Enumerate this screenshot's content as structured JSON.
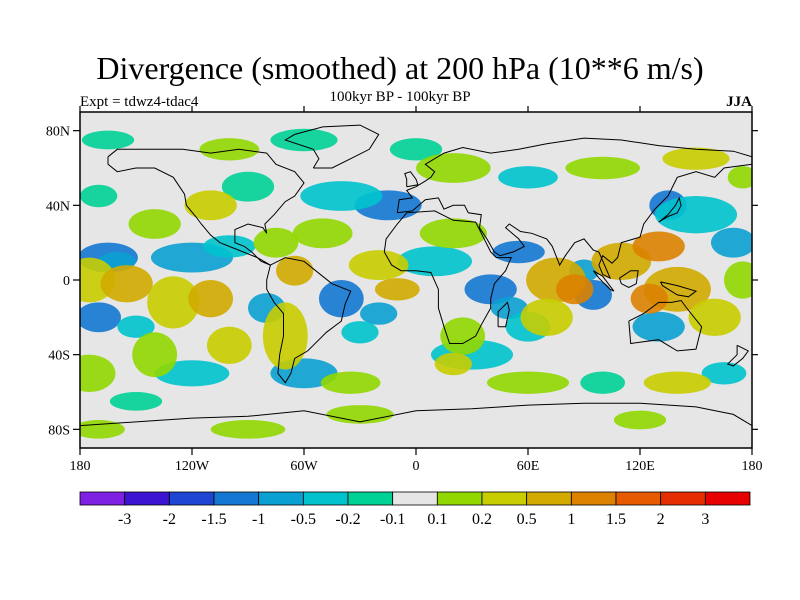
{
  "title": "Divergence (smoothed) at 200 hPa (10**6 m/s)",
  "subtitle": "100kyr BP - 100kyr BP",
  "experiment_label": "Expt = tdwz4-tdac4",
  "season_label": "JJA",
  "colors": {
    "land_bg": "#e6e6e6",
    "coast": "#000000"
  },
  "axes": {
    "x_ticks": [
      {
        "value": -180,
        "label": "180"
      },
      {
        "value": -120,
        "label": "120W"
      },
      {
        "value": -60,
        "label": "60W"
      },
      {
        "value": 0,
        "label": "0"
      },
      {
        "value": 60,
        "label": "60E"
      },
      {
        "value": 120,
        "label": "120E"
      },
      {
        "value": 180,
        "label": "180"
      }
    ],
    "y_ticks": [
      {
        "value": 80,
        "label": "80N"
      },
      {
        "value": 40,
        "label": "40N"
      },
      {
        "value": 0,
        "label": "0"
      },
      {
        "value": -40,
        "label": "40S"
      },
      {
        "value": -80,
        "label": "80S"
      }
    ],
    "x_range": [
      -180,
      180
    ],
    "y_range": [
      -90,
      90
    ]
  },
  "colorbar": {
    "colors": [
      "#7e21e3",
      "#3c14d2",
      "#1e46d2",
      "#1478d2",
      "#0aa0d2",
      "#00c3cd",
      "#00d296",
      "#e6e6e6",
      "#91d700",
      "#c8cd00",
      "#d2aa00",
      "#dc8200",
      "#e65a00",
      "#e62d00",
      "#e60000"
    ],
    "labels": [
      "-3",
      "-2",
      "-1.5",
      "-1",
      "-0.5",
      "-0.2",
      "-0.1",
      "0.1",
      "0.2",
      "0.5",
      "1",
      "1.5",
      "2",
      "3"
    ]
  }
}
